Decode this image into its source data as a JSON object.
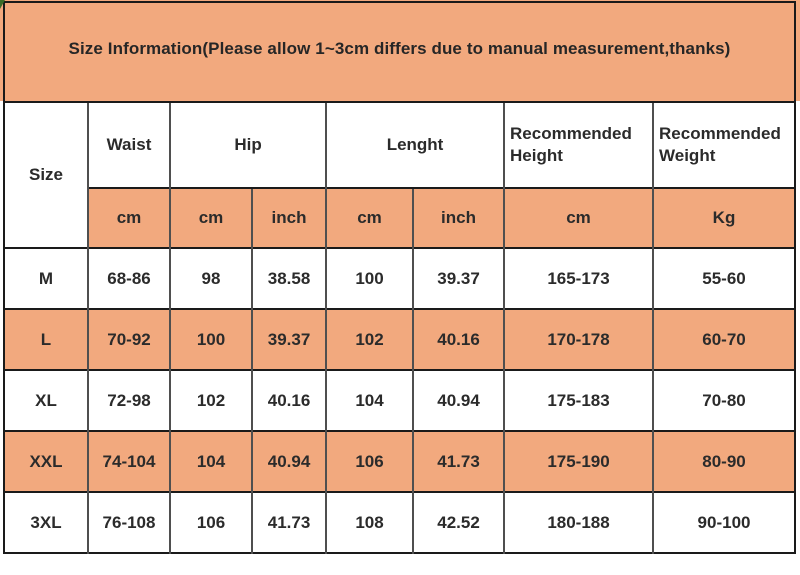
{
  "banner": {
    "title": "Size Information(Please allow 1~3cm differs due to manual measurement,thanks)"
  },
  "colors": {
    "accent_orange": "#F2A97E",
    "border_dark": "#1a1a1a",
    "border_gray": "#4f4f4f",
    "text": "#2b2b2b",
    "corner_green": "#3a6b28"
  },
  "table": {
    "header": {
      "size": "Size",
      "waist": "Waist",
      "hip": "Hip",
      "length": "Lenght",
      "rec_height": "Recommended Height",
      "rec_weight": "Recommended Weight",
      "units": [
        "cm",
        "cm",
        "inch",
        "cm",
        "inch",
        "cm",
        "Kg"
      ]
    },
    "rows": [
      {
        "size": "M",
        "waist_cm": "68-86",
        "hip_cm": "98",
        "hip_inch": "38.58",
        "length_cm": "100",
        "length_inch": "39.37",
        "height_cm": "165-173",
        "weight_kg": "55-60",
        "highlighted": false
      },
      {
        "size": "L",
        "waist_cm": "70-92",
        "hip_cm": "100",
        "hip_inch": "39.37",
        "length_cm": "102",
        "length_inch": "40.16",
        "height_cm": "170-178",
        "weight_kg": "60-70",
        "highlighted": true
      },
      {
        "size": "XL",
        "waist_cm": "72-98",
        "hip_cm": "102",
        "hip_inch": "40.16",
        "length_cm": "104",
        "length_inch": "40.94",
        "height_cm": "175-183",
        "weight_kg": "70-80",
        "highlighted": false
      },
      {
        "size": "XXL",
        "waist_cm": "74-104",
        "hip_cm": "104",
        "hip_inch": "40.94",
        "length_cm": "106",
        "length_inch": "41.73",
        "height_cm": "175-190",
        "weight_kg": "80-90",
        "highlighted": true
      },
      {
        "size": "3XL",
        "waist_cm": "76-108",
        "hip_cm": "106",
        "hip_inch": "41.73",
        "length_cm": "108",
        "length_inch": "42.52",
        "height_cm": "180-188",
        "weight_kg": "90-100",
        "highlighted": false
      }
    ]
  }
}
